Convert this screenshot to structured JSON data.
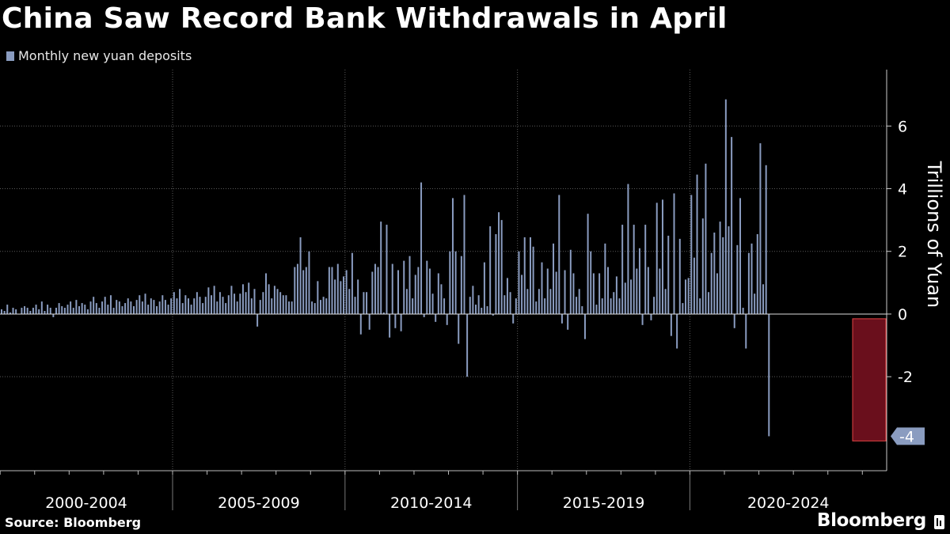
{
  "chart_data": {
    "type": "bar",
    "title": "China Saw Record Bank Withdrawals in April",
    "legend": [
      "Monthly new yuan deposits"
    ],
    "ylabel": "Trillions of Yuan",
    "source": "Source: Bloomberg",
    "brand": "Bloomberg",
    "y_ticks": [
      "6",
      "4",
      "2",
      "0",
      "-2"
    ],
    "ylim": [
      -5,
      7.8
    ],
    "x_period_labels": [
      "2000-2004",
      "2005-2009",
      "2010-2014",
      "2015-2019",
      "2020-2024"
    ],
    "x_range": [
      "2000-01",
      "2025-04"
    ],
    "highlight": {
      "date": "2025-04",
      "value": -3.9,
      "label": "-4"
    },
    "series": [
      {
        "name": "Monthly new yuan deposits",
        "color": "#8a9cc0",
        "start": "2000-01",
        "values": [
          0.15,
          0.1,
          0.3,
          0.05,
          0.2,
          0.15,
          0.0,
          0.2,
          0.25,
          0.2,
          0.1,
          0.2,
          0.3,
          0.15,
          0.4,
          0.1,
          0.3,
          0.2,
          -0.1,
          0.2,
          0.35,
          0.25,
          0.2,
          0.3,
          0.4,
          0.2,
          0.45,
          0.25,
          0.35,
          0.3,
          0.15,
          0.4,
          0.55,
          0.35,
          0.2,
          0.4,
          0.55,
          0.3,
          0.6,
          0.2,
          0.45,
          0.4,
          0.25,
          0.35,
          0.5,
          0.4,
          0.25,
          0.45,
          0.6,
          0.4,
          0.65,
          0.3,
          0.5,
          0.45,
          0.25,
          0.4,
          0.6,
          0.45,
          0.3,
          0.5,
          0.7,
          0.5,
          0.8,
          0.35,
          0.6,
          0.5,
          0.3,
          0.5,
          0.7,
          0.55,
          0.35,
          0.55,
          0.85,
          0.6,
          0.9,
          0.4,
          0.7,
          0.55,
          0.35,
          0.6,
          0.9,
          0.65,
          0.4,
          0.65,
          0.95,
          0.7,
          1.0,
          0.5,
          0.8,
          -0.4,
          0.45,
          0.7,
          1.3,
          0.95,
          0.5,
          0.9,
          0.8,
          0.7,
          0.6,
          0.6,
          0.4,
          0.4,
          1.5,
          1.6,
          2.45,
          1.4,
          1.5,
          2.0,
          0.4,
          0.35,
          1.05,
          0.45,
          0.55,
          0.5,
          1.5,
          1.5,
          1.1,
          1.6,
          1.05,
          1.2,
          1.4,
          0.8,
          1.95,
          0.55,
          1.1,
          -0.65,
          0.7,
          0.7,
          -0.5,
          1.35,
          1.6,
          1.5,
          2.95,
          0.05,
          2.85,
          -0.75,
          1.6,
          -0.45,
          1.4,
          -0.55,
          1.7,
          0.8,
          1.85,
          0.5,
          1.25,
          1.5,
          4.2,
          -0.1,
          1.7,
          1.45,
          0.65,
          -0.25,
          1.3,
          0.95,
          0.5,
          -0.35,
          2.0,
          3.7,
          2.0,
          -0.95,
          1.85,
          3.8,
          -2.0,
          0.55,
          0.9,
          0.3,
          0.6,
          0.2,
          1.65,
          0.25,
          2.8,
          -0.05,
          2.55,
          3.25,
          3.0,
          0.6,
          1.15,
          0.7,
          -0.3,
          0.5,
          2.0,
          1.25,
          2.45,
          0.8,
          2.45,
          2.15,
          0.4,
          0.8,
          1.65,
          0.5,
          1.45,
          0.8,
          2.25,
          1.35,
          3.8,
          -0.3,
          1.4,
          -0.5,
          2.05,
          1.3,
          0.55,
          0.8,
          0.25,
          -0.8,
          3.2,
          2.0,
          1.3,
          0.3,
          1.3,
          0.5,
          2.25,
          1.5,
          0.5,
          0.7,
          1.2,
          0.5,
          2.85,
          1.0,
          4.15,
          1.1,
          2.85,
          1.45,
          2.1,
          -0.35,
          2.85,
          1.5,
          -0.2,
          0.55,
          3.55,
          1.45,
          3.65,
          0.8,
          2.5,
          -0.7,
          3.85,
          -1.1,
          2.4,
          0.35,
          1.1,
          1.15,
          3.8,
          1.8,
          4.45,
          0.5,
          3.05,
          4.8,
          0.7,
          1.95,
          2.6,
          1.3,
          2.95,
          2.45,
          6.85,
          2.8,
          5.65,
          -0.45,
          2.2,
          3.7,
          0.2,
          -1.1,
          1.95,
          2.25,
          0.65,
          2.55,
          5.45,
          0.95,
          4.75,
          -3.9
        ]
      }
    ]
  }
}
